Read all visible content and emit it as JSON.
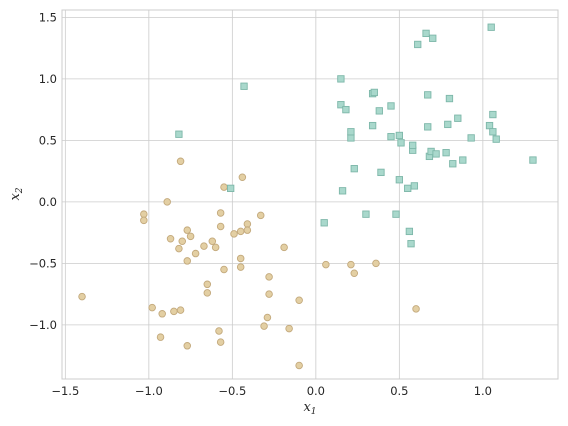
{
  "chart_data": {
    "type": "scatter",
    "title": "",
    "xlabel": "x1",
    "ylabel": "x2",
    "xlim": [
      -1.52,
      1.45
    ],
    "ylim": [
      -1.44,
      1.56
    ],
    "x_ticks": [
      -1.5,
      -1.0,
      -0.5,
      0.0,
      0.5,
      1.0
    ],
    "y_ticks": [
      -1.0,
      -0.5,
      0.0,
      0.5,
      1.0,
      1.5
    ],
    "x_tick_labels": [
      "−1.5",
      "−1.0",
      "−0.5",
      "0.0",
      "0.5",
      "1.0"
    ],
    "y_tick_labels": [
      "−1.0",
      "−0.5",
      "0.0",
      "0.5",
      "1.0",
      "1.5"
    ],
    "grid": true,
    "series": [
      {
        "marker": "circle",
        "color": "#e3cfa3",
        "edge_color": "#c3a97c",
        "points": [
          [
            -1.4,
            -0.77
          ],
          [
            -1.03,
            -0.1
          ],
          [
            -1.03,
            -0.15
          ],
          [
            -0.98,
            -0.86
          ],
          [
            -0.93,
            -1.1
          ],
          [
            -0.92,
            -0.91
          ],
          [
            -0.89,
            0.0
          ],
          [
            -0.87,
            -0.3
          ],
          [
            -0.85,
            -0.89
          ],
          [
            -0.82,
            -0.38
          ],
          [
            -0.81,
            -0.88
          ],
          [
            -0.8,
            -0.32
          ],
          [
            -0.81,
            0.33
          ],
          [
            -0.77,
            -0.23
          ],
          [
            -0.77,
            -0.48
          ],
          [
            -0.77,
            -1.17
          ],
          [
            -0.75,
            -0.28
          ],
          [
            -0.72,
            -0.42
          ],
          [
            -0.67,
            -0.36
          ],
          [
            -0.65,
            -0.67
          ],
          [
            -0.65,
            -0.74
          ],
          [
            -0.62,
            -0.32
          ],
          [
            -0.6,
            -0.37
          ],
          [
            -0.58,
            -1.05
          ],
          [
            -0.57,
            -0.09
          ],
          [
            -0.57,
            -0.2
          ],
          [
            -0.57,
            -1.14
          ],
          [
            -0.55,
            -0.55
          ],
          [
            -0.55,
            0.12
          ],
          [
            -0.49,
            -0.26
          ],
          [
            -0.45,
            -0.46
          ],
          [
            -0.45,
            -0.53
          ],
          [
            -0.45,
            -0.24
          ],
          [
            -0.44,
            0.2
          ],
          [
            -0.41,
            -0.18
          ],
          [
            -0.41,
            -0.23
          ],
          [
            -0.33,
            -0.11
          ],
          [
            -0.31,
            -1.01
          ],
          [
            -0.29,
            -0.94
          ],
          [
            -0.28,
            -0.61
          ],
          [
            -0.28,
            -0.75
          ],
          [
            -0.19,
            -0.37
          ],
          [
            -0.16,
            -1.03
          ],
          [
            -0.1,
            -0.8
          ],
          [
            -0.1,
            -1.33
          ],
          [
            0.06,
            -0.51
          ],
          [
            0.21,
            -0.51
          ],
          [
            0.23,
            -0.58
          ],
          [
            0.36,
            -0.5
          ],
          [
            0.6,
            -0.87
          ]
        ]
      },
      {
        "marker": "square",
        "color": "#a9d8cc",
        "edge_color": "#7db7a9",
        "points": [
          [
            -0.82,
            0.55
          ],
          [
            -0.51,
            0.11
          ],
          [
            -0.43,
            0.94
          ],
          [
            0.05,
            -0.17
          ],
          [
            0.15,
            0.79
          ],
          [
            0.15,
            1.0
          ],
          [
            0.16,
            0.09
          ],
          [
            0.18,
            0.75
          ],
          [
            0.21,
            0.52
          ],
          [
            0.21,
            0.57
          ],
          [
            0.23,
            0.27
          ],
          [
            0.3,
            -0.1
          ],
          [
            0.34,
            0.88
          ],
          [
            0.34,
            0.62
          ],
          [
            0.35,
            0.89
          ],
          [
            0.38,
            0.74
          ],
          [
            0.39,
            0.24
          ],
          [
            0.45,
            0.78
          ],
          [
            0.45,
            0.53
          ],
          [
            0.48,
            -0.1
          ],
          [
            0.5,
            0.54
          ],
          [
            0.5,
            0.18
          ],
          [
            0.51,
            0.48
          ],
          [
            0.55,
            0.11
          ],
          [
            0.56,
            -0.24
          ],
          [
            0.57,
            -0.34
          ],
          [
            0.58,
            0.42
          ],
          [
            0.58,
            0.46
          ],
          [
            0.59,
            0.13
          ],
          [
            0.61,
            1.28
          ],
          [
            0.66,
            1.37
          ],
          [
            0.67,
            0.61
          ],
          [
            0.67,
            0.87
          ],
          [
            0.68,
            0.37
          ],
          [
            0.69,
            0.41
          ],
          [
            0.7,
            1.33
          ],
          [
            0.72,
            0.39
          ],
          [
            0.78,
            0.4
          ],
          [
            0.79,
            0.63
          ],
          [
            0.8,
            0.84
          ],
          [
            0.82,
            0.31
          ],
          [
            0.85,
            0.68
          ],
          [
            0.88,
            0.34
          ],
          [
            0.93,
            0.52
          ],
          [
            1.04,
            0.62
          ],
          [
            1.05,
            1.42
          ],
          [
            1.06,
            0.57
          ],
          [
            1.06,
            0.71
          ],
          [
            1.08,
            0.51
          ],
          [
            1.3,
            0.34
          ]
        ]
      }
    ]
  }
}
